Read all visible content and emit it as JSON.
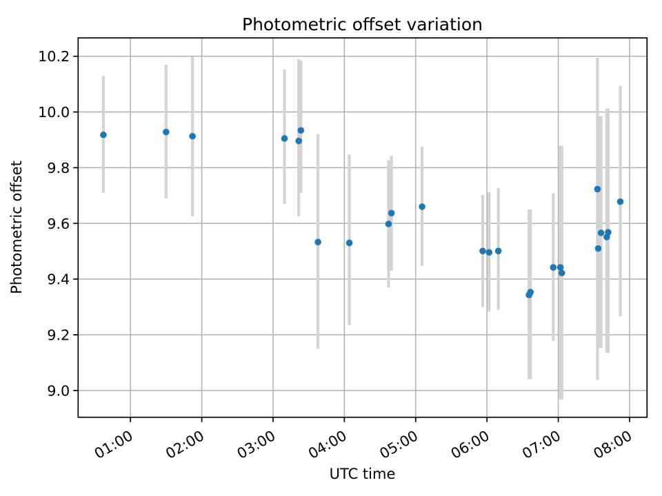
{
  "chart_data": {
    "type": "scatter",
    "title": "Photometric offset variation",
    "xlabel": "UTC time",
    "ylabel": "Photometric offset",
    "grid": true,
    "legend_position": "none",
    "x_axis": {
      "tick_hours": [
        1,
        2,
        3,
        4,
        5,
        6,
        7,
        8
      ],
      "tick_labels": [
        "01:00",
        "02:00",
        "03:00",
        "04:00",
        "05:00",
        "06:00",
        "07:00",
        "08:00"
      ],
      "domain_hours": [
        0.266,
        8.245
      ],
      "label_rotation_deg": 30
    },
    "y_axis": {
      "ticks": [
        9.0,
        9.2,
        9.4,
        9.6,
        9.8,
        10.0,
        10.2
      ],
      "tick_labels": [
        "9.0",
        "9.2",
        "9.4",
        "9.6",
        "9.8",
        "10.0",
        "10.2"
      ],
      "domain": [
        8.904,
        10.266
      ]
    },
    "colors": {
      "marker": "#1f77b4",
      "error_bar": "#d3d3d3",
      "grid": "#b0b0b0",
      "spine": "#000000",
      "text": "#000000"
    },
    "points": [
      {
        "utc": "00:37",
        "t": 0.62,
        "value": 9.918,
        "err_lo": 9.71,
        "err_hi": 10.13
      },
      {
        "utc": "01:30",
        "t": 1.5,
        "value": 9.928,
        "err_lo": 9.69,
        "err_hi": 10.17
      },
      {
        "utc": "01:52",
        "t": 1.87,
        "value": 9.913,
        "err_lo": 9.625,
        "err_hi": 10.198
      },
      {
        "utc": "03:10",
        "t": 3.16,
        "value": 9.905,
        "err_lo": 9.67,
        "err_hi": 10.153
      },
      {
        "utc": "03:22",
        "t": 3.36,
        "value": 9.896,
        "err_lo": 9.625,
        "err_hi": 10.19
      },
      {
        "utc": "03:23",
        "t": 3.39,
        "value": 9.934,
        "err_lo": 9.71,
        "err_hi": 10.185
      },
      {
        "utc": "03:38",
        "t": 3.63,
        "value": 9.533,
        "err_lo": 9.15,
        "err_hi": 9.92
      },
      {
        "utc": "04:04",
        "t": 4.07,
        "value": 9.53,
        "err_lo": 9.235,
        "err_hi": 9.847
      },
      {
        "utc": "04:37",
        "t": 4.62,
        "value": 9.598,
        "err_lo": 9.37,
        "err_hi": 9.827
      },
      {
        "utc": "04:40",
        "t": 4.66,
        "value": 9.637,
        "err_lo": 9.43,
        "err_hi": 9.842
      },
      {
        "utc": "05:05",
        "t": 5.09,
        "value": 9.66,
        "err_lo": 9.447,
        "err_hi": 9.875
      },
      {
        "utc": "05:56",
        "t": 5.94,
        "value": 9.501,
        "err_lo": 9.3,
        "err_hi": 9.702
      },
      {
        "utc": "06:02",
        "t": 6.03,
        "value": 9.496,
        "err_lo": 9.283,
        "err_hi": 9.712
      },
      {
        "utc": "06:10",
        "t": 6.16,
        "value": 9.501,
        "err_lo": 9.29,
        "err_hi": 9.727
      },
      {
        "utc": "06:35",
        "t": 6.59,
        "value": 9.343,
        "err_lo": 9.042,
        "err_hi": 9.65
      },
      {
        "utc": "06:37",
        "t": 6.61,
        "value": 9.353,
        "err_lo": 9.042,
        "err_hi": 9.65
      },
      {
        "utc": "06:56",
        "t": 6.93,
        "value": 9.442,
        "err_lo": 9.178,
        "err_hi": 9.708
      },
      {
        "utc": "07:02",
        "t": 7.03,
        "value": 9.442,
        "err_lo": 8.968,
        "err_hi": 9.879
      },
      {
        "utc": "07:03",
        "t": 7.05,
        "value": 9.422,
        "err_lo": 8.968,
        "err_hi": 9.879
      },
      {
        "utc": "07:33",
        "t": 7.55,
        "value": 9.723,
        "err_lo": 9.038,
        "err_hi": 10.195
      },
      {
        "utc": "07:34",
        "t": 7.56,
        "value": 9.51,
        "err_lo": 9.153,
        "err_hi": 9.985
      },
      {
        "utc": "07:36",
        "t": 7.6,
        "value": 9.566,
        "err_lo": 9.153,
        "err_hi": 9.985
      },
      {
        "utc": "07:41",
        "t": 7.68,
        "value": 9.551,
        "err_lo": 9.135,
        "err_hi": 10.012
      },
      {
        "utc": "07:42",
        "t": 7.7,
        "value": 9.568,
        "err_lo": 9.135,
        "err_hi": 10.012
      },
      {
        "utc": "07:52",
        "t": 7.87,
        "value": 9.678,
        "err_lo": 9.266,
        "err_hi": 10.094
      }
    ]
  }
}
